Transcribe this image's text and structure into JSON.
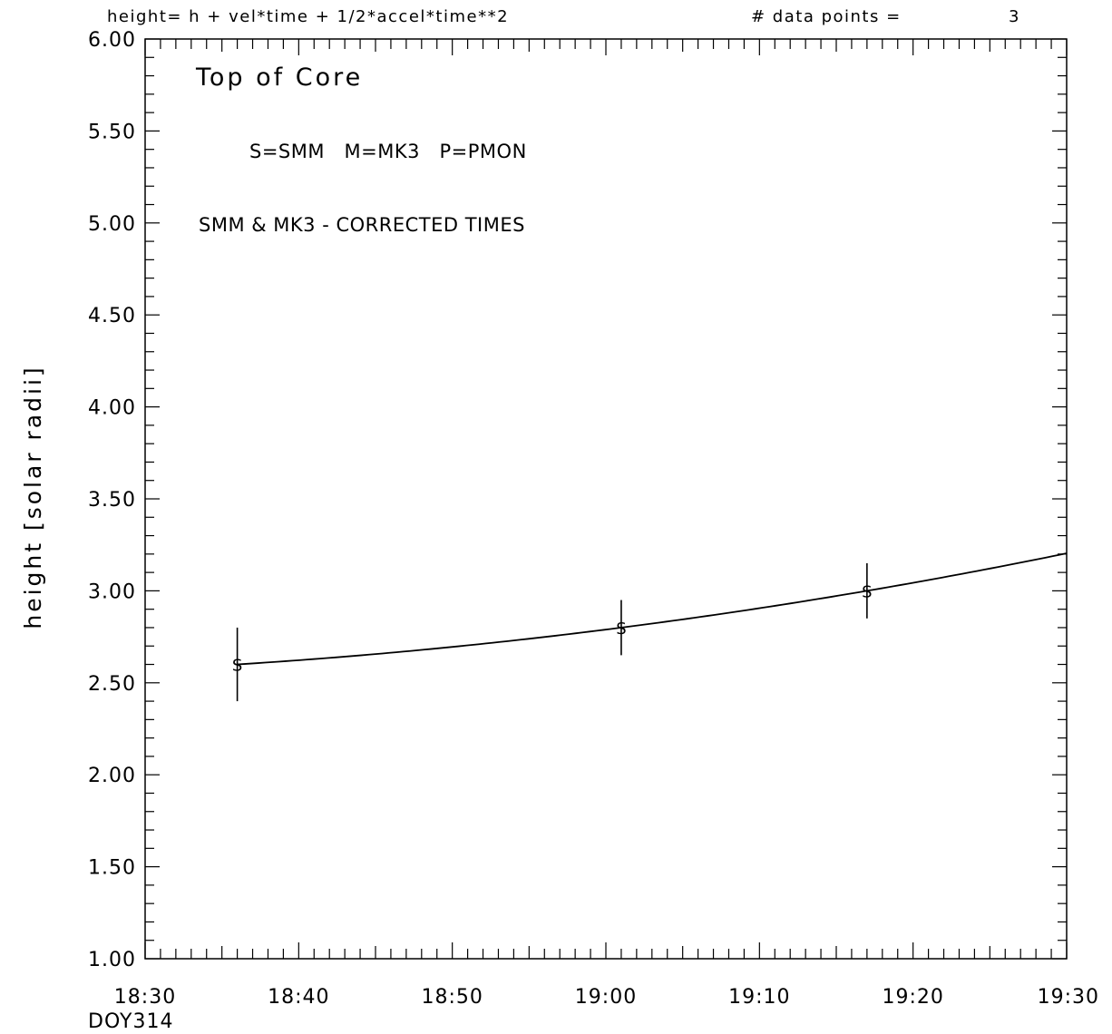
{
  "header": {
    "formula": "height= h + vel*time + 1/2*accel*time**2",
    "data_points_label": "# data points =",
    "data_points_value": "3"
  },
  "chart_data": {
    "type": "scatter",
    "title": "",
    "xlabel": "",
    "ylabel": "height [solar radii]",
    "x_unit": "time (hh:mm), day of year 314",
    "xlim": [
      "18:30",
      "19:30"
    ],
    "ylim": [
      1.0,
      6.0
    ],
    "x_ticks": [
      "18:30",
      "18:40",
      "18:50",
      "19:00",
      "19:10",
      "19:20",
      "19:30"
    ],
    "x_tick_minutes": [
      0,
      10,
      20,
      30,
      40,
      50,
      60
    ],
    "x_sublabel": "DOY314",
    "y_ticks": [
      "1.00",
      "1.50",
      "2.00",
      "2.50",
      "3.00",
      "3.50",
      "4.00",
      "4.50",
      "5.00",
      "5.50",
      "6.00"
    ],
    "y_tick_values": [
      1.0,
      1.5,
      2.0,
      2.5,
      3.0,
      3.5,
      4.0,
      4.5,
      5.0,
      5.5,
      6.0
    ],
    "grid": false,
    "annotations": {
      "panel_title": "Top of Core",
      "legend": "S=SMM   M=MK3   P=PMON",
      "note": "SMM & MK3 - CORRECTED TIMES"
    },
    "series": [
      {
        "marker": "S",
        "points": [
          {
            "time": "18:36",
            "y": 2.6,
            "y_err_low": 2.4,
            "y_err_high": 2.8
          },
          {
            "time": "19:01",
            "y": 2.8,
            "y_err_low": 2.65,
            "y_err_high": 2.95
          },
          {
            "time": "19:17",
            "y": 3.0,
            "y_err_low": 2.85,
            "y_err_high": 3.15
          }
        ]
      }
    ],
    "fit_curve": {
      "type": "quadratic",
      "from_time": "18:36",
      "to_time": "19:30",
      "points": [
        {
          "time": "18:36",
          "y": 2.6
        },
        {
          "time": "19:01",
          "y": 2.8
        },
        {
          "time": "19:17",
          "y": 3.0
        },
        {
          "time": "19:30",
          "y": 3.18
        }
      ]
    }
  }
}
